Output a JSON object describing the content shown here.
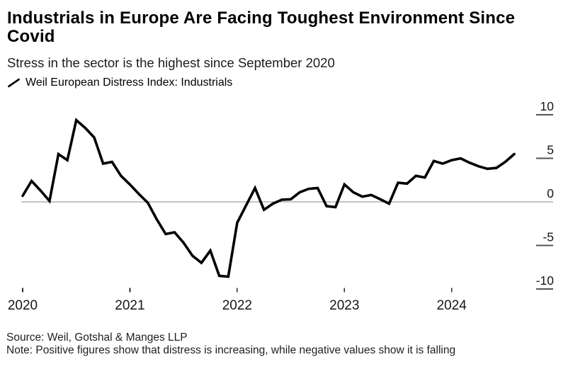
{
  "page": {
    "title": "Industrials in Europe Are Facing Toughest Environment Since Covid",
    "subtitle": "Stress in the sector is the highest since September 2020",
    "source": "Source: Weil, Gotshal & Manges LLP",
    "note": "Note: Positive figures show that distress is increasing, while negative values show it is falling"
  },
  "legend": {
    "marker": "diagonal-line-sample",
    "label": "Weil European Distress Index: Industrials"
  },
  "colors": {
    "background": "#ffffff",
    "series_line": "#000000",
    "zero_line": "#8a8a8a",
    "tick_dash": "#545454",
    "x_tick_mark": "#2b2b2b",
    "axis_text": "#161616",
    "title_text": "#000000"
  },
  "chart_data": {
    "type": "line",
    "title": "Industrials in Europe Are Facing Toughest Environment Since Covid",
    "subtitle": "Stress in the sector is the highest since September 2020",
    "xlabel": "",
    "ylabel": "",
    "grid": false,
    "zero_line": true,
    "y_axis_side": "right",
    "legend_position": "top-left",
    "x_ticks": [
      "2020",
      "2021",
      "2022",
      "2023",
      "2024"
    ],
    "y_ticks": [
      10,
      5,
      0,
      -5,
      -10
    ],
    "ylim": [
      -11,
      11
    ],
    "frequency": "monthly",
    "x_start": "2020-01",
    "x_end": "2024-08",
    "series": [
      {
        "name": "Weil European Distress Index: Industrials",
        "color": "#000000",
        "values": [
          0.7,
          2.4,
          1.3,
          0.1,
          5.5,
          4.8,
          9.4,
          8.5,
          7.4,
          4.4,
          4.6,
          3.0,
          2.0,
          0.9,
          -0.1,
          -2.0,
          -3.7,
          -3.5,
          -4.7,
          -6.2,
          -7.0,
          -5.6,
          -8.5,
          -8.6,
          -2.4,
          -0.4,
          1.6,
          -0.9,
          -0.2,
          0.25,
          0.3,
          1.1,
          1.5,
          1.6,
          -0.5,
          -0.6,
          2.0,
          1.1,
          0.6,
          0.8,
          0.3,
          -0.2,
          2.2,
          2.1,
          3.0,
          2.8,
          4.7,
          4.4,
          4.8,
          5.0,
          4.5,
          4.1,
          3.8,
          3.9,
          4.6,
          5.5
        ]
      }
    ]
  }
}
